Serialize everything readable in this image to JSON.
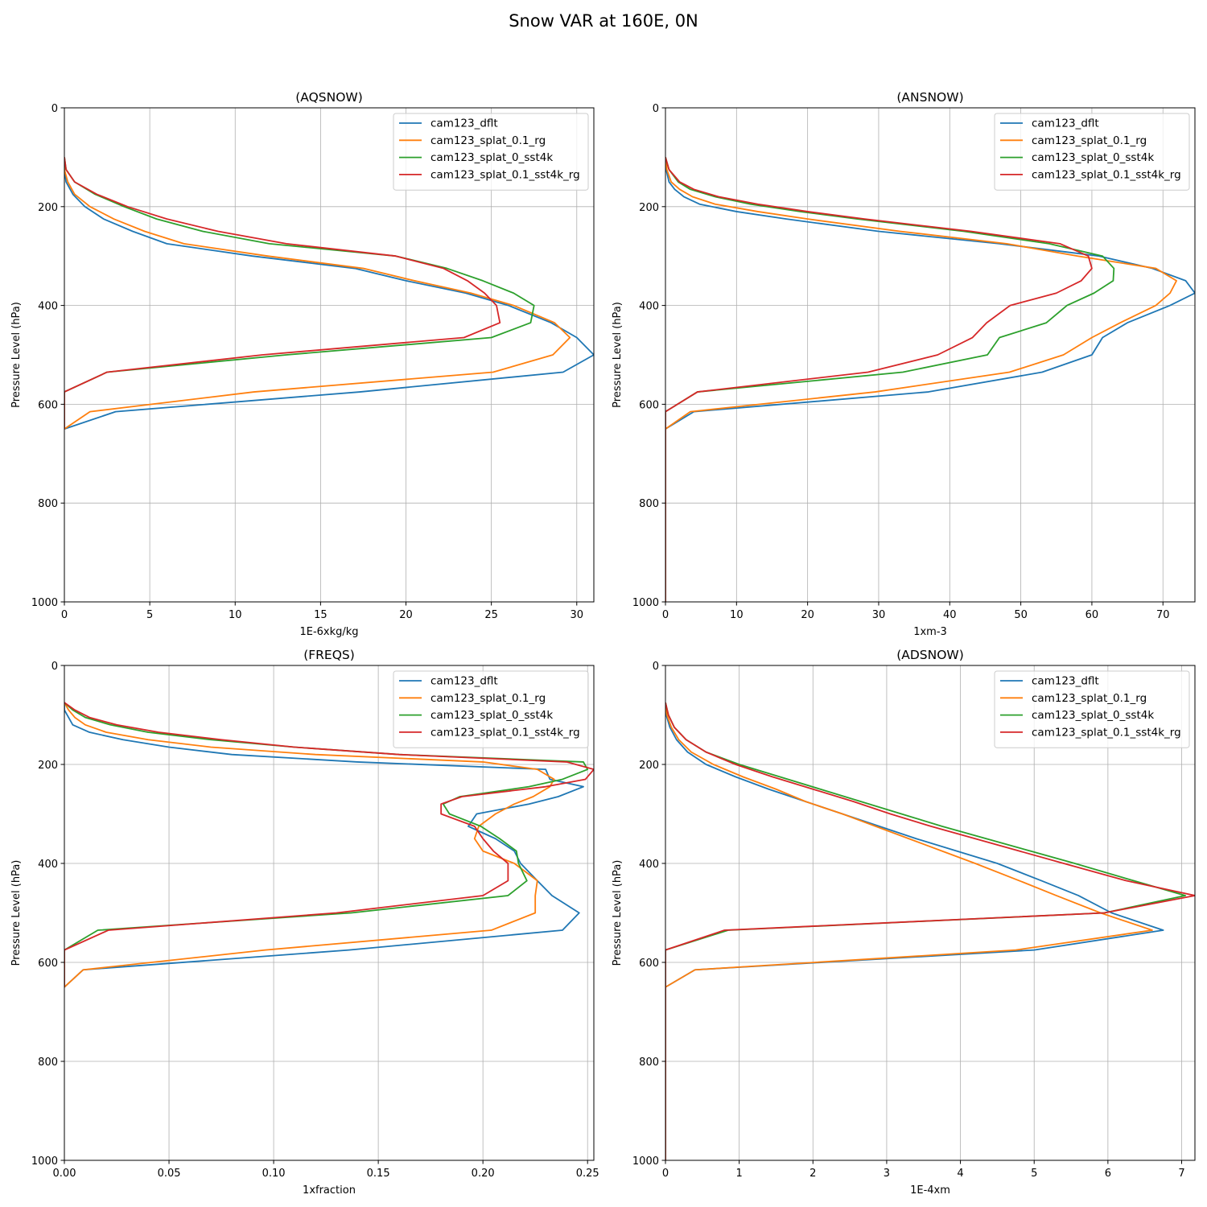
{
  "title": "Snow VAR at 160E, 0N",
  "colors": {
    "cam123_dflt": "#1f77b4",
    "cam123_splat_0.1_rg": "#ff7f0e",
    "cam123_splat_0_sst4k": "#2ca02c",
    "cam123_splat_0.1_sst4k_rg": "#d62728",
    "grid": "#b0b0b0"
  },
  "chart_data": [
    {
      "type": "line",
      "title": "(AQSNOW)",
      "xlabel": "1E-6xkg/kg",
      "ylabel": "Pressure Level (hPa)",
      "xlim": [
        0,
        31
      ],
      "ylim": [
        1000,
        0
      ],
      "xticks": [
        0,
        5,
        10,
        15,
        20,
        25,
        30
      ],
      "xtick_labels": [
        "0",
        "5",
        "10",
        "15",
        "20",
        "25",
        "30"
      ],
      "yticks": [
        0,
        200,
        400,
        600,
        800,
        1000
      ],
      "ytick_labels": [
        "0",
        "200",
        "400",
        "600",
        "800",
        "1000"
      ],
      "grid": true,
      "legend": "top-right",
      "pressure_levels": [
        100,
        125,
        150,
        175,
        200,
        225,
        250,
        275,
        300,
        325,
        350,
        375,
        400,
        435,
        465,
        500,
        535,
        575,
        615,
        650
      ],
      "series": [
        {
          "name": "cam123_dflt",
          "values": [
            0,
            0,
            0.1,
            0.5,
            1.2,
            2.3,
            4,
            6,
            11,
            17,
            20,
            23.5,
            26,
            28.5,
            30,
            31,
            29.2,
            17.3,
            3,
            0
          ]
        },
        {
          "name": "cam123_splat_0.1_rg",
          "values": [
            0,
            0,
            0.2,
            0.6,
            1.5,
            2.9,
            4.7,
            7,
            11.9,
            17.5,
            20.5,
            23.8,
            26.3,
            28.7,
            29.6,
            28.6,
            25.1,
            11.1,
            1.5,
            0
          ]
        },
        {
          "name": "cam123_splat_0_sst4k",
          "values": [
            0,
            0.1,
            0.6,
            1.8,
            3.5,
            5.4,
            8.1,
            12,
            19.4,
            22.4,
            24.5,
            26.3,
            27.5,
            27.3,
            25,
            13,
            2.5,
            0,
            0,
            0
          ]
        },
        {
          "name": "cam123_splat_0.1_sst4k_rg",
          "values": [
            0,
            0.1,
            0.6,
            1.9,
            3.7,
            6,
            9,
            13,
            19.4,
            22.2,
            23.6,
            24.6,
            25.3,
            25.5,
            23.4,
            11.6,
            2.5,
            0,
            0,
            0
          ]
        }
      ]
    },
    {
      "type": "line",
      "title": "(ANSNOW)",
      "xlabel": "1xm-3",
      "ylabel": "Pressure Level (hPa)",
      "xlim": [
        0,
        74.5
      ],
      "ylim": [
        1000,
        0
      ],
      "xticks": [
        0,
        10,
        20,
        30,
        40,
        50,
        60,
        70
      ],
      "xtick_labels": [
        "0",
        "10",
        "20",
        "30",
        "40",
        "50",
        "60",
        "70"
      ],
      "yticks": [
        0,
        200,
        400,
        600,
        800,
        1000
      ],
      "ytick_labels": [
        "0",
        "200",
        "400",
        "600",
        "800",
        "1000"
      ],
      "grid": true,
      "legend": "top-right",
      "pressure_levels": [
        100,
        125,
        150,
        165,
        180,
        195,
        210,
        225,
        250,
        275,
        300,
        325,
        350,
        375,
        400,
        435,
        465,
        500,
        535,
        575,
        615,
        650,
        1000
      ],
      "series": [
        {
          "name": "cam123_dflt",
          "values": [
            0,
            0.1,
            0.5,
            1.3,
            2.6,
            4.8,
            10,
            17,
            30,
            47,
            61,
            68.5,
            73.2,
            74.5,
            71,
            65,
            61.5,
            60,
            53,
            37,
            4,
            0,
            0
          ]
        },
        {
          "name": "cam123_splat_0.1_rg",
          "values": [
            0,
            0.2,
            0.8,
            2,
            3.8,
            7,
            13,
            20,
            33,
            48,
            58,
            69,
            71.9,
            71,
            69,
            64,
            60,
            56,
            48.4,
            29.5,
            3.5,
            0,
            0
          ]
        },
        {
          "name": "cam123_splat_0_sst4k",
          "values": [
            0,
            0.5,
            1.8,
            3.5,
            7,
            12,
            19,
            27,
            42,
            54,
            61.5,
            63.1,
            63,
            60.3,
            56.5,
            53.6,
            47,
            45.3,
            33.4,
            4.5,
            0,
            0,
            0
          ]
        },
        {
          "name": "cam123_splat_0.1_sst4k_rg",
          "values": [
            0,
            0.5,
            2,
            4,
            7.5,
            13,
            20,
            28,
            43,
            55.5,
            59.5,
            60,
            58.5,
            55,
            48.5,
            45.2,
            43.2,
            38.3,
            28.5,
            4.5,
            0,
            0,
            0
          ]
        }
      ]
    },
    {
      "type": "line",
      "title": "(FREQS)",
      "xlabel": "1xfraction",
      "ylabel": "Pressure Level (hPa)",
      "xlim": [
        0,
        0.253
      ],
      "ylim": [
        1000,
        0
      ],
      "xticks": [
        0,
        0.05,
        0.1,
        0.15,
        0.2,
        0.25
      ],
      "xtick_labels": [
        "0.00",
        "0.05",
        "0.10",
        "0.15",
        "0.20",
        "0.25"
      ],
      "yticks": [
        0,
        200,
        400,
        600,
        800,
        1000
      ],
      "ytick_labels": [
        "0",
        "200",
        "400",
        "600",
        "800",
        "1000"
      ],
      "grid": true,
      "legend": "top-right",
      "pressure_levels": [
        75,
        90,
        105,
        120,
        135,
        150,
        165,
        180,
        195,
        210,
        230,
        245,
        265,
        280,
        300,
        325,
        350,
        375,
        400,
        435,
        465,
        500,
        535,
        575,
        615,
        650
      ],
      "series": [
        {
          "name": "cam123_dflt",
          "values": [
            0,
            0,
            0.002,
            0.004,
            0.012,
            0.028,
            0.05,
            0.08,
            0.14,
            0.23,
            0.232,
            0.248,
            0.236,
            0.222,
            0.197,
            0.193,
            0.206,
            0.215,
            0.218,
            0.226,
            0.233,
            0.246,
            0.238,
            0.136,
            0.009,
            0
          ]
        },
        {
          "name": "cam123_splat_0.1_rg",
          "values": [
            0,
            0.002,
            0.005,
            0.01,
            0.02,
            0.04,
            0.07,
            0.12,
            0.2,
            0.226,
            0.234,
            0.232,
            0.224,
            0.215,
            0.206,
            0.198,
            0.196,
            0.2,
            0.215,
            0.226,
            0.225,
            0.225,
            0.204,
            0.096,
            0.009,
            0
          ]
        },
        {
          "name": "cam123_splat_0_sst4k",
          "values": [
            0,
            0.004,
            0.01,
            0.022,
            0.04,
            0.07,
            0.11,
            0.16,
            0.248,
            0.25,
            0.238,
            0.222,
            0.189,
            0.181,
            0.184,
            0.199,
            0.208,
            0.216,
            0.217,
            0.221,
            0.212,
            0.137,
            0.016,
            0,
            0,
            0
          ]
        },
        {
          "name": "cam123_splat_0.1_sst4k_rg",
          "values": [
            0,
            0.005,
            0.012,
            0.025,
            0.045,
            0.075,
            0.11,
            0.16,
            0.24,
            0.253,
            0.249,
            0.23,
            0.19,
            0.18,
            0.18,
            0.196,
            0.2,
            0.205,
            0.212,
            0.212,
            0.2,
            0.13,
            0.021,
            0,
            0,
            0
          ]
        }
      ]
    },
    {
      "type": "line",
      "title": "(ADSNOW)",
      "xlabel": "1E-4xm",
      "ylabel": "Pressure Level (hPa)",
      "xlim": [
        0,
        7.18
      ],
      "ylim": [
        1000,
        0
      ],
      "xticks": [
        0,
        1,
        2,
        3,
        4,
        5,
        6,
        7
      ],
      "xtick_labels": [
        "0",
        "1",
        "2",
        "3",
        "4",
        "5",
        "6",
        "7"
      ],
      "yticks": [
        0,
        200,
        400,
        600,
        800,
        1000
      ],
      "ytick_labels": [
        "0",
        "200",
        "400",
        "600",
        "800",
        "1000"
      ],
      "grid": true,
      "legend": "top-right",
      "pressure_levels": [
        75,
        100,
        125,
        150,
        175,
        200,
        225,
        250,
        275,
        300,
        325,
        350,
        375,
        400,
        435,
        465,
        500,
        535,
        575,
        615,
        650,
        1000
      ],
      "series": [
        {
          "name": "cam123_dflt",
          "values": [
            0,
            0.01,
            0.06,
            0.15,
            0.3,
            0.55,
            0.95,
            1.4,
            1.9,
            2.4,
            2.9,
            3.4,
            3.95,
            4.5,
            5.1,
            5.6,
            6.05,
            6.75,
            5.0,
            0.4,
            0,
            0
          ]
        },
        {
          "name": "cam123_splat_0.1_rg",
          "values": [
            0,
            0.02,
            0.08,
            0.18,
            0.35,
            0.65,
            1.05,
            1.5,
            1.9,
            2.4,
            2.85,
            3.3,
            3.75,
            4.2,
            4.8,
            5.3,
            5.9,
            6.6,
            4.75,
            0.4,
            0,
            0
          ]
        },
        {
          "name": "cam123_splat_0_sst4k",
          "values": [
            0,
            0.04,
            0.12,
            0.28,
            0.55,
            1.0,
            1.55,
            2.1,
            2.65,
            3.2,
            3.75,
            4.35,
            4.95,
            5.55,
            6.35,
            7.05,
            5.95,
            0.85,
            0,
            0,
            0,
            0
          ]
        },
        {
          "name": "cam123_splat_0.1_sst4k_rg",
          "values": [
            0,
            0.04,
            0.12,
            0.28,
            0.55,
            0.95,
            1.45,
            2.0,
            2.55,
            3.05,
            3.6,
            4.2,
            4.8,
            5.4,
            6.25,
            7.18,
            5.95,
            0.8,
            0,
            0,
            0,
            0
          ]
        }
      ]
    }
  ]
}
